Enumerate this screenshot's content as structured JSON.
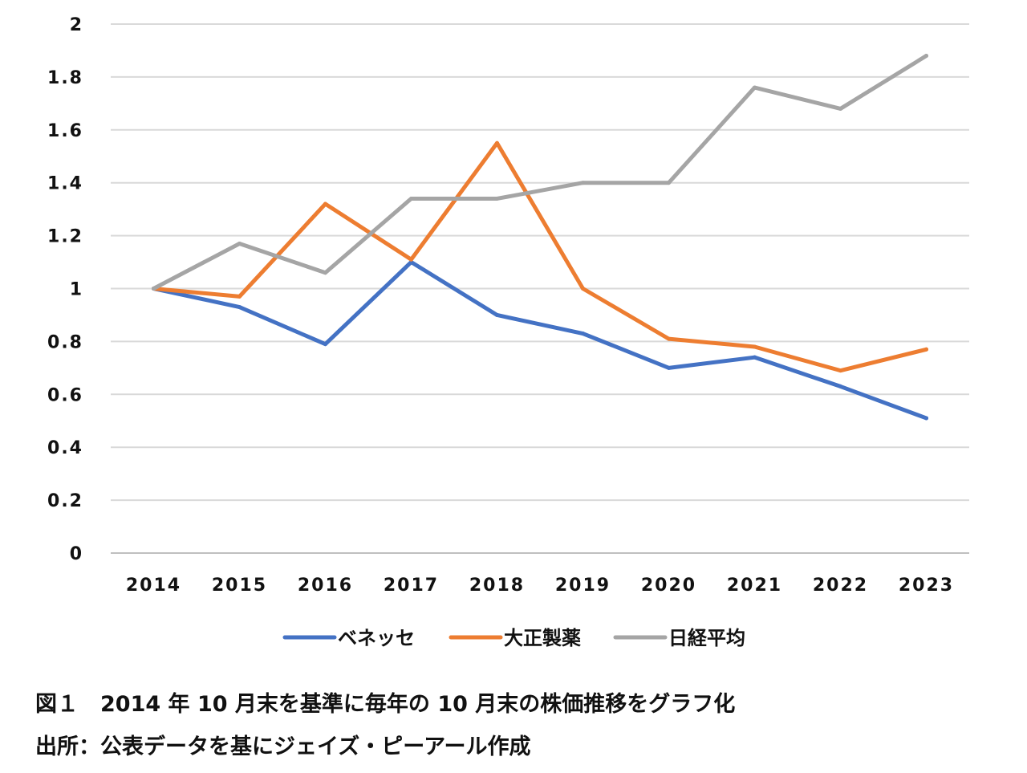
{
  "chart_data": {
    "type": "line",
    "categories": [
      "2014",
      "2015",
      "2016",
      "2017",
      "2018",
      "2019",
      "2020",
      "2021",
      "2022",
      "2023"
    ],
    "ylim": [
      0,
      2
    ],
    "yticks": [
      "0",
      "0.2",
      "0.4",
      "0.6",
      "0.8",
      "1",
      "1.2",
      "1.4",
      "1.6",
      "1.8",
      "2"
    ],
    "grid": true,
    "legend_position": "bottom",
    "series": [
      {
        "name": "ベネッセ",
        "color": "#4472C4",
        "values": [
          1.0,
          0.93,
          0.79,
          1.1,
          0.9,
          0.83,
          0.7,
          0.74,
          0.63,
          0.51
        ]
      },
      {
        "name": "大正製薬",
        "color": "#ED7D31",
        "values": [
          1.0,
          0.97,
          1.32,
          1.11,
          1.55,
          1.0,
          0.81,
          0.78,
          0.69,
          0.77
        ]
      },
      {
        "name": "日経平均",
        "color": "#A5A5A5",
        "values": [
          1.0,
          1.17,
          1.06,
          1.34,
          1.34,
          1.4,
          1.4,
          1.76,
          1.68,
          1.88
        ]
      }
    ]
  },
  "captions": {
    "figure": "図１　2014 年 10 月末を基準に毎年の 10 月末の株価推移をグラフ化",
    "source": "出所：公表データを基にジェイズ・ピーアール作成"
  }
}
